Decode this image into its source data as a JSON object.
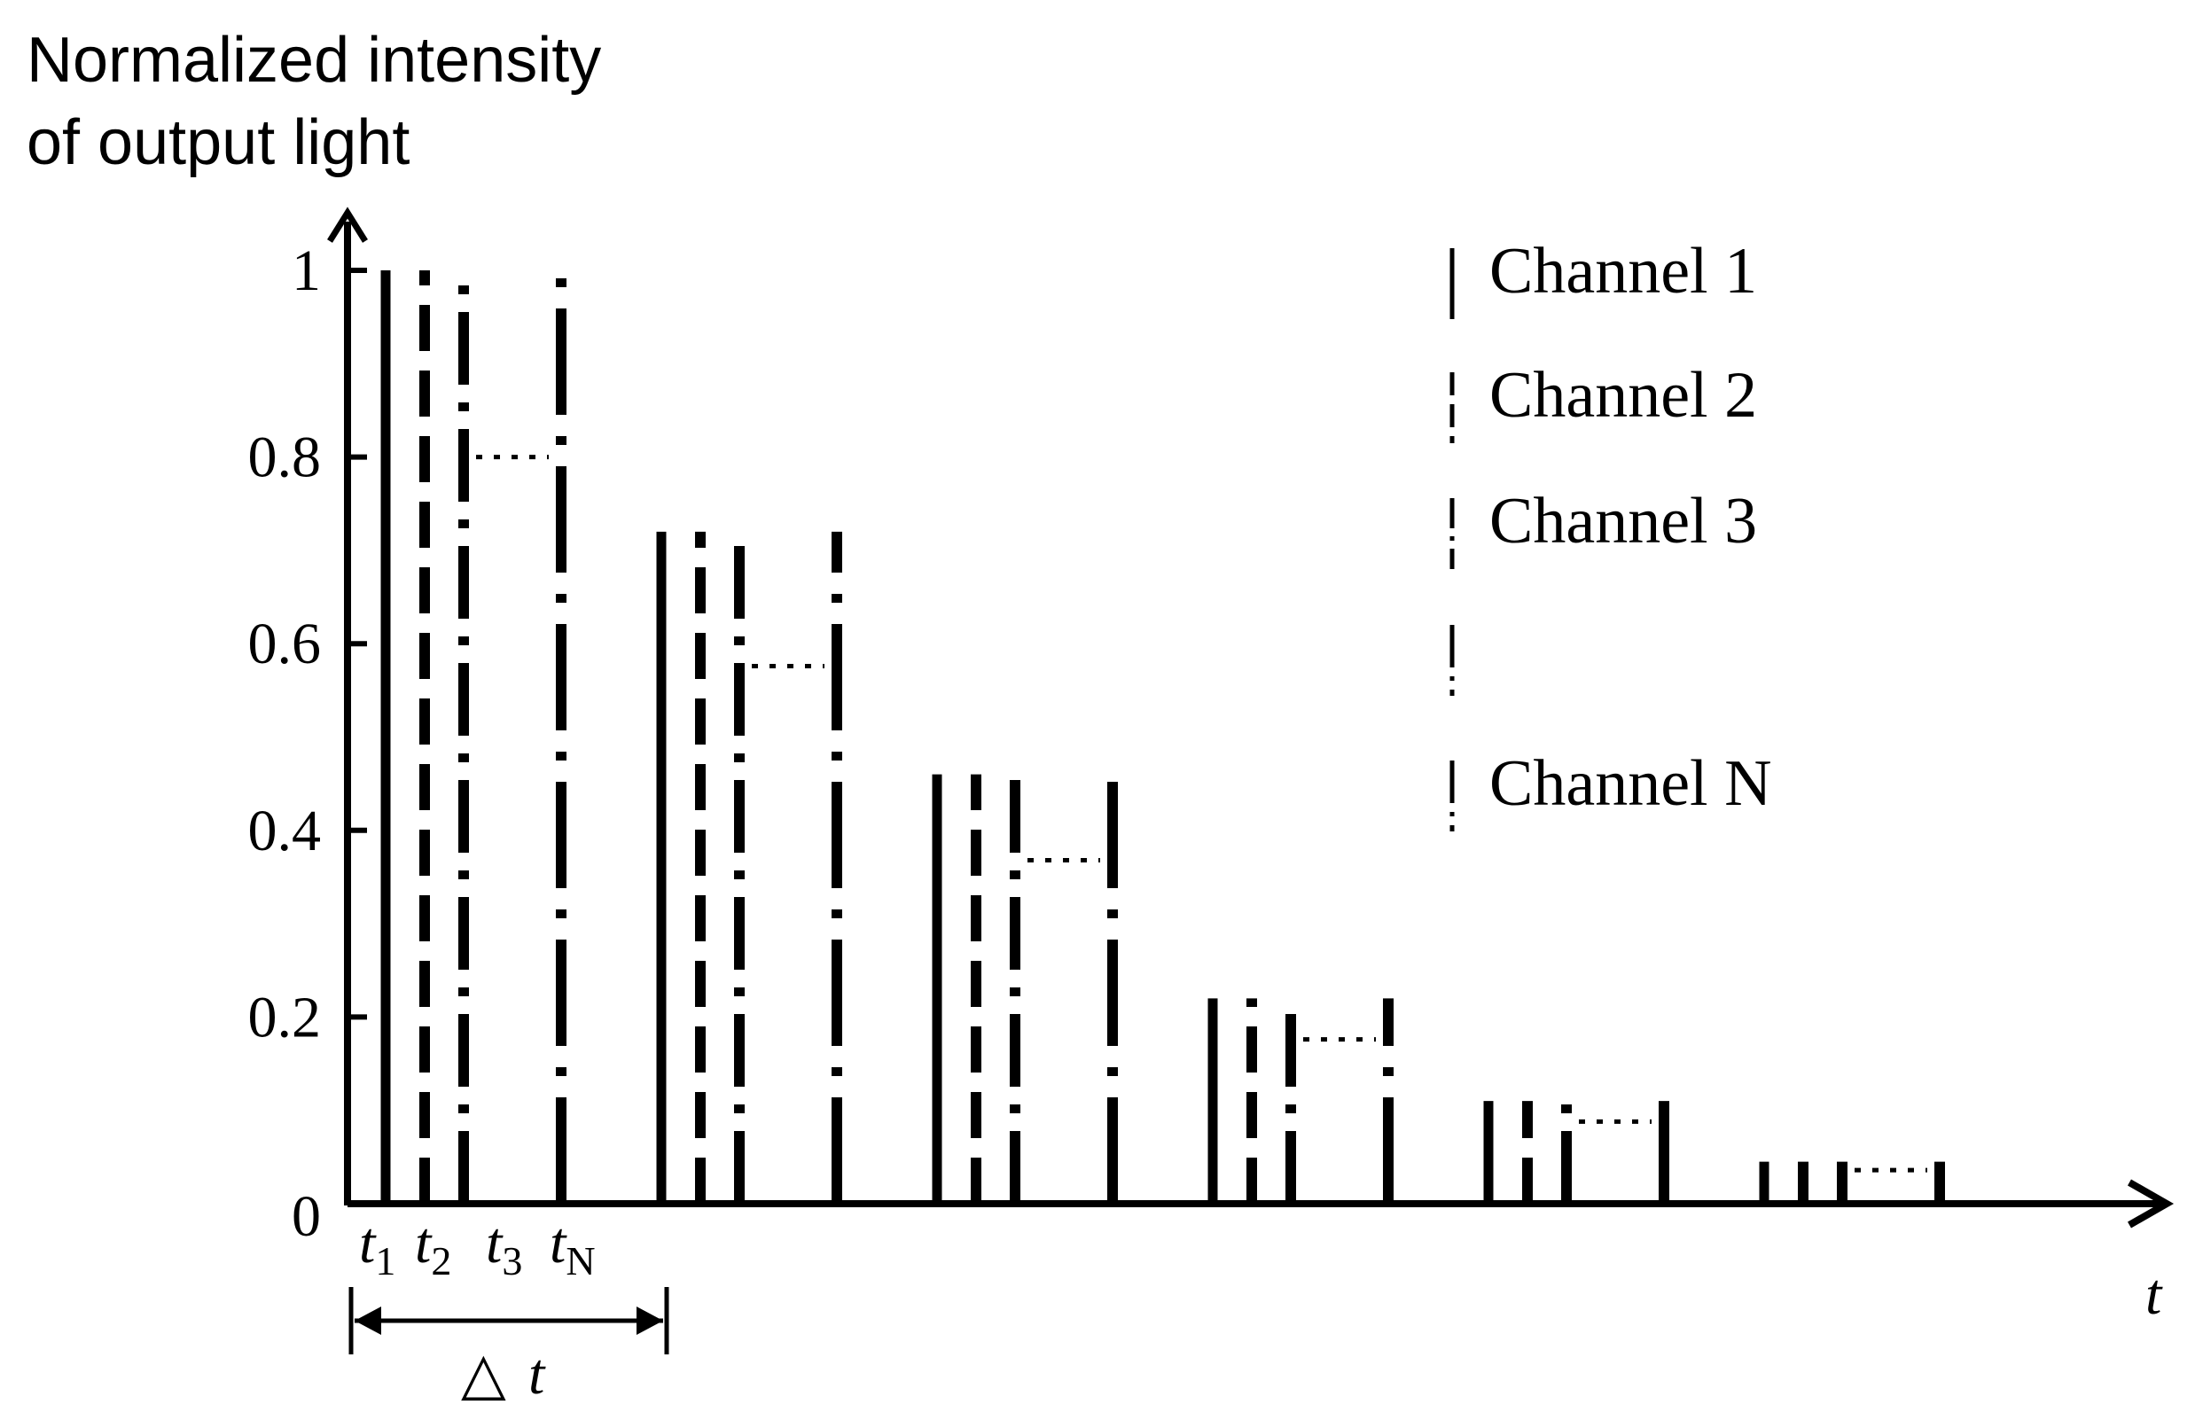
{
  "chart_data": {
    "type": "bar",
    "ylabel_lines": [
      "Normalized intensity",
      "of output light"
    ],
    "xlabel": "t",
    "ylim": [
      0,
      1
    ],
    "yticks": [
      "0",
      "0.2",
      "0.4",
      "0.6",
      "0.8",
      "1"
    ],
    "ytick_values": [
      0,
      0.2,
      0.4,
      0.6,
      0.8,
      1
    ],
    "time_labels": [
      {
        "base": "t",
        "sub": "1"
      },
      {
        "base": "t",
        "sub": "2"
      },
      {
        "base": "t",
        "sub": "3"
      },
      {
        "base": "t",
        "sub": "N"
      }
    ],
    "interval_label": {
      "symbol": "△",
      "var": "t"
    },
    "groups": [
      1.0,
      0.72,
      0.46,
      0.22,
      0.11,
      0.045
    ],
    "series": [
      {
        "name": "Channel 1",
        "style": "solid",
        "values": [
          1.0,
          0.72,
          0.46,
          0.22,
          0.11,
          0.045
        ]
      },
      {
        "name": "Channel 2",
        "style": "dashed",
        "values": [
          1.0,
          0.72,
          0.46,
          0.22,
          0.11,
          0.045
        ]
      },
      {
        "name": "Channel 3",
        "style": "dashdot",
        "values": [
          1.0,
          0.72,
          0.46,
          0.22,
          0.11,
          0.045
        ]
      },
      {
        "name": "Channel N",
        "style": "longdash-dot",
        "values": [
          1.0,
          0.72,
          0.46,
          0.22,
          0.11,
          0.045
        ]
      }
    ],
    "legend": {
      "placement": "top-right",
      "entries": [
        "Channel 1",
        "Channel 2",
        "Channel 3",
        "",
        "Channel N"
      ]
    },
    "grid": false
  }
}
